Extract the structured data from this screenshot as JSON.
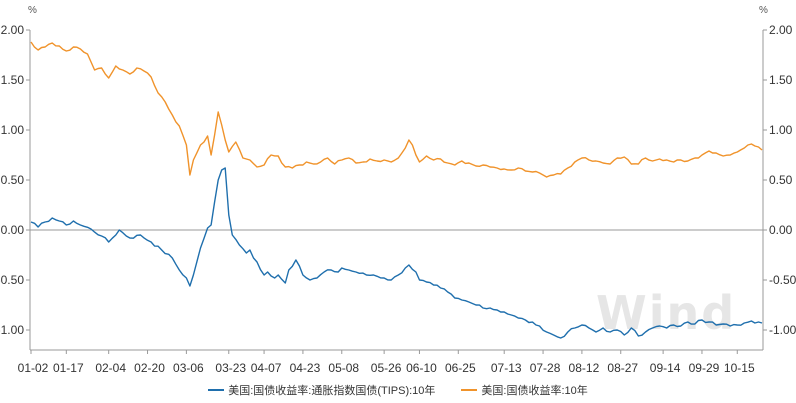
{
  "watermark": "Wind",
  "colors": {
    "tips": "#1f6fad",
    "nominal": "#f0932b",
    "axis": "#999999",
    "zero": "#999999"
  },
  "chart_data": {
    "type": "line",
    "title": "",
    "left_unit": "%",
    "right_unit": "%",
    "ylim": [
      -1.25,
      2.1
    ],
    "yticks": [
      2.0,
      1.5,
      1.0,
      0.5,
      0.0,
      -0.5,
      -1.0
    ],
    "ytick_labels": [
      "2.00",
      "1.50",
      "1.00",
      "0.50",
      "0.00",
      "-0.50",
      "-1.00"
    ],
    "xticks": [
      {
        "index": 0,
        "label": "01-02"
      },
      {
        "index": 10,
        "label": "01-17"
      },
      {
        "index": 22,
        "label": "02-04"
      },
      {
        "index": 33,
        "label": "02-20"
      },
      {
        "index": 44,
        "label": "03-06"
      },
      {
        "index": 56,
        "label": "03-23"
      },
      {
        "index": 66,
        "label": "04-07"
      },
      {
        "index": 77,
        "label": "04-23"
      },
      {
        "index": 88,
        "label": "05-08"
      },
      {
        "index": 100,
        "label": "05-26"
      },
      {
        "index": 110,
        "label": "06-10"
      },
      {
        "index": 121,
        "label": "06-25"
      },
      {
        "index": 134,
        "label": "07-13"
      },
      {
        "index": 145,
        "label": "07-28"
      },
      {
        "index": 156,
        "label": "08-12"
      },
      {
        "index": 167,
        "label": "08-27"
      },
      {
        "index": 179,
        "label": "09-14"
      },
      {
        "index": 190,
        "label": "09-29"
      },
      {
        "index": 200,
        "label": "10-15"
      }
    ],
    "n_points": 208,
    "series": [
      {
        "name": "美国:国债收益率:通胀指数国债(TIPS):10年",
        "color": "#1f6fad",
        "anchors": [
          [
            0,
            0.08
          ],
          [
            2,
            0.03
          ],
          [
            4,
            0.08
          ],
          [
            6,
            0.12
          ],
          [
            8,
            0.09
          ],
          [
            10,
            0.05
          ],
          [
            12,
            0.09
          ],
          [
            14,
            0.05
          ],
          [
            17,
            0.01
          ],
          [
            20,
            -0.06
          ],
          [
            22,
            -0.12
          ],
          [
            25,
            0.0
          ],
          [
            28,
            -0.08
          ],
          [
            31,
            -0.05
          ],
          [
            34,
            -0.12
          ],
          [
            37,
            -0.2
          ],
          [
            40,
            -0.28
          ],
          [
            42,
            -0.4
          ],
          [
            44,
            -0.48
          ],
          [
            45,
            -0.56
          ],
          [
            46,
            -0.45
          ],
          [
            48,
            -0.18
          ],
          [
            50,
            0.02
          ],
          [
            51,
            0.05
          ],
          [
            52,
            0.28
          ],
          [
            53,
            0.5
          ],
          [
            54,
            0.6
          ],
          [
            55,
            0.62
          ],
          [
            56,
            0.15
          ],
          [
            57,
            -0.05
          ],
          [
            59,
            -0.15
          ],
          [
            61,
            -0.23
          ],
          [
            62,
            -0.2
          ],
          [
            63,
            -0.28
          ],
          [
            64,
            -0.32
          ],
          [
            66,
            -0.45
          ],
          [
            67,
            -0.42
          ],
          [
            69,
            -0.48
          ],
          [
            70,
            -0.45
          ],
          [
            72,
            -0.53
          ],
          [
            73,
            -0.4
          ],
          [
            75,
            -0.3
          ],
          [
            77,
            -0.45
          ],
          [
            79,
            -0.5
          ],
          [
            81,
            -0.48
          ],
          [
            83,
            -0.42
          ],
          [
            85,
            -0.4
          ],
          [
            87,
            -0.42
          ],
          [
            88,
            -0.38
          ],
          [
            90,
            -0.4
          ],
          [
            92,
            -0.42
          ],
          [
            95,
            -0.45
          ],
          [
            97,
            -0.45
          ],
          [
            100,
            -0.48
          ],
          [
            102,
            -0.5
          ],
          [
            104,
            -0.45
          ],
          [
            106,
            -0.38
          ],
          [
            107,
            -0.35
          ],
          [
            109,
            -0.42
          ],
          [
            110,
            -0.5
          ],
          [
            112,
            -0.52
          ],
          [
            114,
            -0.55
          ],
          [
            116,
            -0.58
          ],
          [
            118,
            -0.62
          ],
          [
            120,
            -0.68
          ],
          [
            122,
            -0.7
          ],
          [
            124,
            -0.72
          ],
          [
            126,
            -0.75
          ],
          [
            128,
            -0.78
          ],
          [
            130,
            -0.78
          ],
          [
            132,
            -0.8
          ],
          [
            134,
            -0.82
          ],
          [
            136,
            -0.85
          ],
          [
            138,
            -0.88
          ],
          [
            140,
            -0.9
          ],
          [
            143,
            -0.95
          ],
          [
            146,
            -1.02
          ],
          [
            148,
            -1.05
          ],
          [
            150,
            -1.08
          ],
          [
            152,
            -1.02
          ],
          [
            154,
            -0.98
          ],
          [
            156,
            -0.95
          ],
          [
            158,
            -0.98
          ],
          [
            160,
            -1.02
          ],
          [
            162,
            -0.98
          ],
          [
            164,
            -1.02
          ],
          [
            166,
            -1.0
          ],
          [
            168,
            -1.05
          ],
          [
            170,
            -0.98
          ],
          [
            172,
            -1.06
          ],
          [
            174,
            -1.02
          ],
          [
            176,
            -0.98
          ],
          [
            178,
            -0.96
          ],
          [
            180,
            -0.98
          ],
          [
            182,
            -0.95
          ],
          [
            184,
            -0.96
          ],
          [
            186,
            -0.92
          ],
          [
            188,
            -0.94
          ],
          [
            190,
            -0.9
          ],
          [
            192,
            -0.92
          ],
          [
            194,
            -0.95
          ],
          [
            196,
            -0.94
          ],
          [
            198,
            -0.96
          ],
          [
            200,
            -0.95
          ],
          [
            202,
            -0.93
          ],
          [
            204,
            -0.91
          ],
          [
            206,
            -0.92
          ],
          [
            207,
            -0.93
          ]
        ]
      },
      {
        "name": "美国:国债收益率:10年",
        "color": "#f0932b",
        "anchors": [
          [
            0,
            1.88
          ],
          [
            2,
            1.8
          ],
          [
            4,
            1.83
          ],
          [
            6,
            1.87
          ],
          [
            8,
            1.84
          ],
          [
            10,
            1.79
          ],
          [
            12,
            1.83
          ],
          [
            14,
            1.81
          ],
          [
            16,
            1.76
          ],
          [
            18,
            1.6
          ],
          [
            20,
            1.62
          ],
          [
            22,
            1.52
          ],
          [
            24,
            1.64
          ],
          [
            26,
            1.6
          ],
          [
            28,
            1.56
          ],
          [
            30,
            1.62
          ],
          [
            32,
            1.59
          ],
          [
            34,
            1.53
          ],
          [
            36,
            1.37
          ],
          [
            38,
            1.28
          ],
          [
            40,
            1.15
          ],
          [
            42,
            1.04
          ],
          [
            44,
            0.85
          ],
          [
            45,
            0.55
          ],
          [
            46,
            0.7
          ],
          [
            48,
            0.85
          ],
          [
            50,
            0.94
          ],
          [
            51,
            0.75
          ],
          [
            52,
            0.95
          ],
          [
            53,
            1.18
          ],
          [
            54,
            1.05
          ],
          [
            55,
            0.9
          ],
          [
            56,
            0.78
          ],
          [
            58,
            0.88
          ],
          [
            60,
            0.72
          ],
          [
            62,
            0.7
          ],
          [
            64,
            0.63
          ],
          [
            66,
            0.65
          ],
          [
            68,
            0.75
          ],
          [
            70,
            0.74
          ],
          [
            72,
            0.63
          ],
          [
            74,
            0.62
          ],
          [
            76,
            0.65
          ],
          [
            78,
            0.68
          ],
          [
            80,
            0.66
          ],
          [
            82,
            0.68
          ],
          [
            84,
            0.72
          ],
          [
            86,
            0.66
          ],
          [
            88,
            0.7
          ],
          [
            90,
            0.72
          ],
          [
            92,
            0.67
          ],
          [
            94,
            0.68
          ],
          [
            96,
            0.71
          ],
          [
            98,
            0.69
          ],
          [
            100,
            0.7
          ],
          [
            102,
            0.68
          ],
          [
            104,
            0.72
          ],
          [
            106,
            0.82
          ],
          [
            107,
            0.9
          ],
          [
            108,
            0.85
          ],
          [
            109,
            0.75
          ],
          [
            110,
            0.68
          ],
          [
            112,
            0.74
          ],
          [
            114,
            0.7
          ],
          [
            116,
            0.71
          ],
          [
            118,
            0.67
          ],
          [
            120,
            0.65
          ],
          [
            122,
            0.69
          ],
          [
            124,
            0.67
          ],
          [
            126,
            0.64
          ],
          [
            128,
            0.65
          ],
          [
            130,
            0.63
          ],
          [
            132,
            0.62
          ],
          [
            134,
            0.61
          ],
          [
            136,
            0.6
          ],
          [
            138,
            0.62
          ],
          [
            140,
            0.59
          ],
          [
            142,
            0.58
          ],
          [
            144,
            0.57
          ],
          [
            146,
            0.53
          ],
          [
            148,
            0.55
          ],
          [
            150,
            0.56
          ],
          [
            152,
            0.62
          ],
          [
            154,
            0.68
          ],
          [
            156,
            0.72
          ],
          [
            158,
            0.7
          ],
          [
            160,
            0.69
          ],
          [
            162,
            0.67
          ],
          [
            164,
            0.66
          ],
          [
            166,
            0.72
          ],
          [
            168,
            0.73
          ],
          [
            170,
            0.66
          ],
          [
            172,
            0.66
          ],
          [
            174,
            0.72
          ],
          [
            176,
            0.69
          ],
          [
            178,
            0.71
          ],
          [
            180,
            0.7
          ],
          [
            182,
            0.68
          ],
          [
            184,
            0.7
          ],
          [
            186,
            0.69
          ],
          [
            188,
            0.72
          ],
          [
            190,
            0.75
          ],
          [
            192,
            0.79
          ],
          [
            194,
            0.77
          ],
          [
            196,
            0.74
          ],
          [
            198,
            0.75
          ],
          [
            200,
            0.78
          ],
          [
            202,
            0.82
          ],
          [
            204,
            0.86
          ],
          [
            206,
            0.83
          ],
          [
            207,
            0.8
          ]
        ]
      }
    ],
    "legend_position": "bottom",
    "grid": false
  }
}
